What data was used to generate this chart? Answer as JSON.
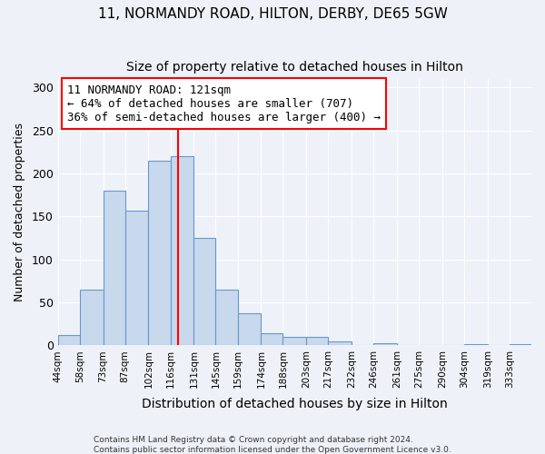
{
  "title": "11, NORMANDY ROAD, HILTON, DERBY, DE65 5GW",
  "subtitle": "Size of property relative to detached houses in Hilton",
  "xlabel": "Distribution of detached houses by size in Hilton",
  "ylabel": "Number of detached properties",
  "bin_labels": [
    "44sqm",
    "58sqm",
    "73sqm",
    "87sqm",
    "102sqm",
    "116sqm",
    "131sqm",
    "145sqm",
    "159sqm",
    "174sqm",
    "188sqm",
    "203sqm",
    "217sqm",
    "232sqm",
    "246sqm",
    "261sqm",
    "275sqm",
    "290sqm",
    "304sqm",
    "319sqm",
    "333sqm"
  ],
  "bin_edges": [
    44,
    58,
    73,
    87,
    102,
    116,
    131,
    145,
    159,
    174,
    188,
    203,
    217,
    232,
    246,
    261,
    275,
    290,
    304,
    319,
    333,
    347
  ],
  "bar_heights": [
    12,
    65,
    180,
    157,
    215,
    220,
    125,
    65,
    37,
    14,
    10,
    10,
    5,
    0,
    3,
    0,
    0,
    0,
    2,
    0,
    2
  ],
  "bar_color": "#c8d8ed",
  "bar_edge_color": "#6699cc",
  "vline_x": 121,
  "vline_color": "red",
  "annotation_title": "11 NORMANDY ROAD: 121sqm",
  "annotation_line1": "← 64% of detached houses are smaller (707)",
  "annotation_line2": "36% of semi-detached houses are larger (400) →",
  "annotation_box_color": "white",
  "annotation_box_edge": "red",
  "ylim": [
    0,
    310
  ],
  "xlim": [
    44,
    347
  ],
  "footer1": "Contains HM Land Registry data © Crown copyright and database right 2024.",
  "footer2": "Contains public sector information licensed under the Open Government Licence v3.0.",
  "background_color": "#eef2f8",
  "title_fontsize": 11,
  "subtitle_fontsize": 10,
  "ylabel_fontsize": 9,
  "xlabel_fontsize": 10,
  "annotation_fontsize": 9
}
